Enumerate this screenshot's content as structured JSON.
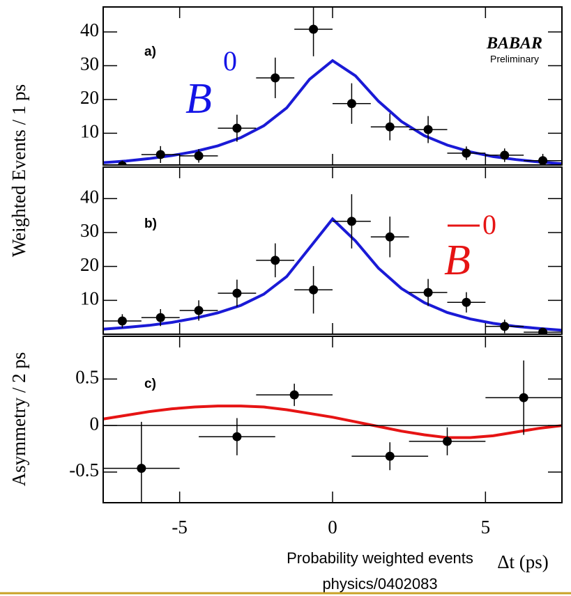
{
  "chart_data": [
    {
      "type": "scatter",
      "label": "a)",
      "particle": {
        "symbol": "B",
        "superscript": "0",
        "color": "#1414e6"
      },
      "logo": "BABAR",
      "logo_sub": "Preliminary",
      "ylabel": "Weighted  Events / 1 ps",
      "x": [
        -6.875,
        -5.625,
        -4.375,
        -3.125,
        -1.875,
        -0.625,
        0.625,
        1.875,
        3.125,
        4.375,
        5.625,
        6.875
      ],
      "values": [
        0.4,
        3.7,
        3.3,
        11.5,
        26.4,
        40.8,
        18.8,
        11.9,
        11.1,
        4.1,
        3.5,
        1.9
      ],
      "yerr": [
        1.5,
        2.5,
        2,
        4,
        6,
        8,
        6,
        4,
        4,
        2,
        2,
        2
      ],
      "xerr": 0.625,
      "color": "#000000",
      "fit": {
        "x": [
          -7.5,
          -6.75,
          -6,
          -5.25,
          -4.5,
          -3.75,
          -3,
          -2.25,
          -1.5,
          -0.75,
          0,
          0.75,
          1.5,
          2.25,
          3,
          3.75,
          4.5,
          5.25,
          6,
          6.75,
          7.5
        ],
        "values": [
          1.3,
          1.8,
          2.5,
          3.4,
          4.6,
          6.3,
          8.7,
          12.2,
          17.5,
          26,
          31.5,
          27,
          19.5,
          13.5,
          9.3,
          6.5,
          4.5,
          3.1,
          2.2,
          1.5,
          1.0
        ],
        "color": "#1a1ad6"
      },
      "xlim": [
        -7.5,
        7.5
      ],
      "xticks": [
        -5,
        0,
        5
      ],
      "ylim": [
        0.6,
        47.4
      ],
      "yticks": [
        10,
        20,
        30,
        40
      ]
    },
    {
      "type": "scatter",
      "label": "b)",
      "particle": {
        "symbol": "B",
        "superscript": "0",
        "color": "#e61414"
      },
      "x": [
        -6.875,
        -5.625,
        -4.375,
        -3.125,
        -1.875,
        -0.625,
        0.625,
        1.875,
        3.125,
        4.375,
        5.625,
        6.875
      ],
      "values": [
        3.9,
        4.9,
        7.0,
        12.1,
        21.8,
        13.1,
        33.3,
        28.7,
        12.3,
        9.4,
        2.3,
        0.6
      ],
      "yerr": [
        2,
        2.5,
        3,
        4,
        5,
        7,
        8,
        6,
        4,
        3,
        2,
        1
      ],
      "xerr": 0.625,
      "color": "#000000",
      "fit": {
        "x": [
          -7.5,
          -6.75,
          -6,
          -5.25,
          -4.5,
          -3.75,
          -3,
          -2.25,
          -1.5,
          -0.75,
          0,
          0.75,
          1.5,
          2.25,
          3,
          3.75,
          4.5,
          5.25,
          6,
          6.75,
          7.5
        ],
        "values": [
          1.5,
          2,
          2.6,
          3.5,
          4.7,
          6.3,
          8.5,
          11.8,
          17,
          25.5,
          34,
          27.5,
          19.5,
          13.5,
          9.3,
          6.4,
          4.5,
          3.2,
          2.3,
          1.7,
          1.2
        ],
        "color": "#1a1ad6"
      },
      "xlim": [
        -7.5,
        7.5
      ],
      "xticks": [
        -5,
        0,
        5
      ],
      "ylim": [
        0,
        49.3
      ],
      "yticks": [
        10,
        20,
        30,
        40
      ]
    },
    {
      "type": "scatter",
      "label": "c)",
      "ylabel": "Asymmetry / 2 ps",
      "xlabel": "Δt (ps)",
      "x": [
        -6.25,
        -3.125,
        -1.25,
        1.875,
        3.75,
        6.25
      ],
      "values": [
        -0.46,
        -0.12,
        0.33,
        -0.33,
        -0.17,
        0.3
      ],
      "yerr": [
        0.5,
        0.2,
        0.12,
        0.15,
        0.15,
        0.4
      ],
      "xerr": 1.25,
      "color": "#000000",
      "fit": {
        "x": [
          -7.5,
          -6.75,
          -6,
          -5.25,
          -4.5,
          -3.75,
          -3,
          -2.25,
          -1.5,
          -0.75,
          0,
          0.75,
          1.5,
          2.25,
          3,
          3.75,
          4.5,
          5.25,
          6,
          6.75,
          7.5
        ],
        "values": [
          0.07,
          0.11,
          0.15,
          0.18,
          0.2,
          0.21,
          0.21,
          0.2,
          0.17,
          0.13,
          0.09,
          0.04,
          -0.01,
          -0.06,
          -0.1,
          -0.13,
          -0.13,
          -0.11,
          -0.07,
          -0.03,
          0.0
        ],
        "color": "#e61414"
      },
      "xlim": [
        -7.5,
        7.5
      ],
      "xticks": [
        -5,
        0,
        5
      ],
      "ylim": [
        -0.83,
        0.96
      ],
      "yticks": [
        -0.5,
        0,
        0.5
      ],
      "zero_line": true
    }
  ],
  "footer": [
    "Probability weighted events",
    "physics/0402083"
  ]
}
